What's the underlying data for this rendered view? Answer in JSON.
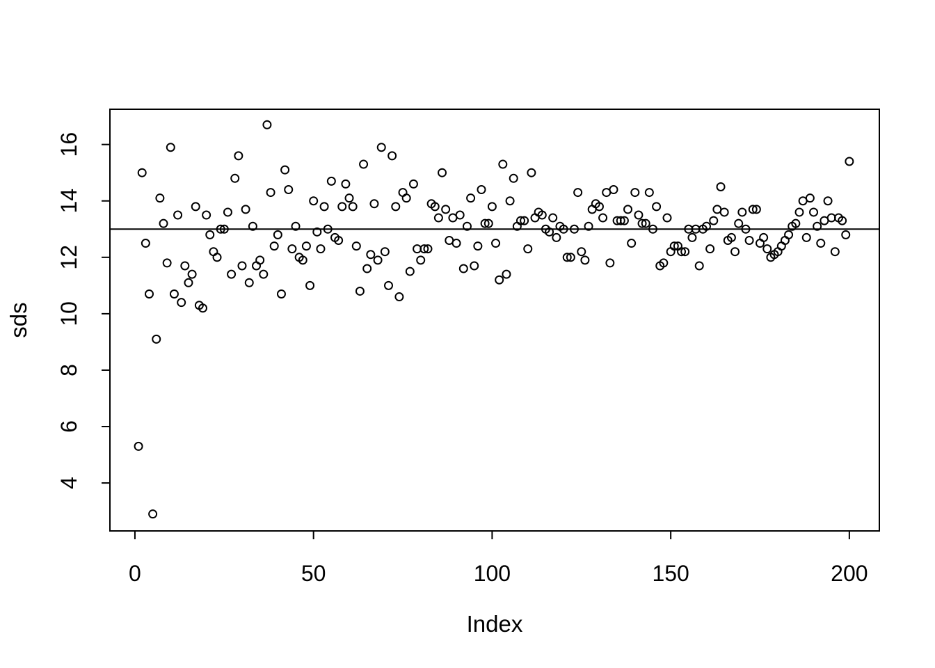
{
  "figure": {
    "background": "#ffffff",
    "foreground": "#000000"
  },
  "chart_data": {
    "type": "scatter",
    "title": "",
    "xlabel": "Index",
    "ylabel": "sds",
    "marker": "open-circle",
    "marker_color": "#000000",
    "grid": false,
    "legend": false,
    "x_ticks": [
      0,
      50,
      100,
      150,
      200
    ],
    "y_ticks": [
      4,
      6,
      8,
      10,
      12,
      14,
      16
    ],
    "xlim": [
      -7,
      208.4
    ],
    "ylim": [
      2.3,
      17.25
    ],
    "hline": {
      "y": 13,
      "color": "#000000"
    },
    "n_points": 200,
    "x_start": 1,
    "y": [
      5.3,
      15.0,
      12.5,
      10.7,
      2.9,
      9.1,
      14.1,
      13.2,
      11.8,
      15.9,
      10.7,
      13.5,
      10.4,
      11.7,
      11.1,
      11.4,
      13.8,
      10.3,
      10.2,
      13.5,
      12.8,
      12.2,
      12.0,
      13.0,
      13.0,
      13.6,
      11.4,
      14.8,
      15.6,
      11.7,
      13.7,
      11.1,
      13.1,
      11.7,
      11.9,
      11.4,
      16.7,
      14.3,
      12.4,
      12.8,
      10.7,
      15.1,
      14.4,
      12.3,
      13.1,
      12.0,
      11.9,
      12.4,
      11.0,
      14.0,
      12.9,
      12.3,
      13.8,
      13.0,
      14.7,
      12.7,
      12.6,
      13.8,
      14.6,
      14.1,
      13.8,
      12.4,
      10.8,
      15.3,
      11.6,
      12.1,
      13.9,
      11.9,
      15.9,
      12.2,
      11.0,
      15.6,
      13.8,
      10.6,
      14.3,
      14.1,
      11.5,
      14.6,
      12.3,
      11.9,
      12.3,
      12.3,
      13.9,
      13.8,
      13.4,
      15.0,
      13.7,
      12.6,
      13.4,
      12.5,
      13.5,
      11.6,
      13.1,
      14.1,
      11.7,
      12.4,
      14.4,
      13.2,
      13.2,
      13.8,
      12.5,
      11.2,
      15.3,
      11.4,
      14.0,
      14.8,
      13.1,
      13.3,
      13.3,
      12.3,
      15.0,
      13.4,
      13.6,
      13.5,
      13.0,
      12.9,
      13.4,
      12.7,
      13.1,
      13.0,
      12.0,
      12.0,
      13.0,
      14.3,
      12.2,
      11.9,
      13.1,
      13.7,
      13.9,
      13.8,
      13.4,
      14.3,
      11.8,
      14.4,
      13.3,
      13.3,
      13.3,
      13.7,
      12.5,
      14.3,
      13.5,
      13.2,
      13.2,
      14.3,
      13.0,
      13.8,
      11.7,
      11.8,
      13.4,
      12.2,
      12.4,
      12.4,
      12.2,
      12.2,
      13.0,
      12.7,
      13.0,
      11.7,
      13.0,
      13.1,
      12.3,
      13.3,
      13.7,
      14.5,
      13.6,
      12.6,
      12.7,
      12.2,
      13.2,
      13.6,
      13.0,
      12.6,
      13.7,
      13.7,
      12.5,
      12.7,
      12.3,
      12.0,
      12.1,
      12.2,
      12.4,
      12.6,
      12.8,
      13.1,
      13.2,
      13.6,
      14.0,
      12.7,
      14.1,
      13.6,
      13.1,
      12.5,
      13.3,
      14.0,
      13.4,
      12.2,
      13.4,
      13.3,
      12.8,
      15.4
    ]
  }
}
